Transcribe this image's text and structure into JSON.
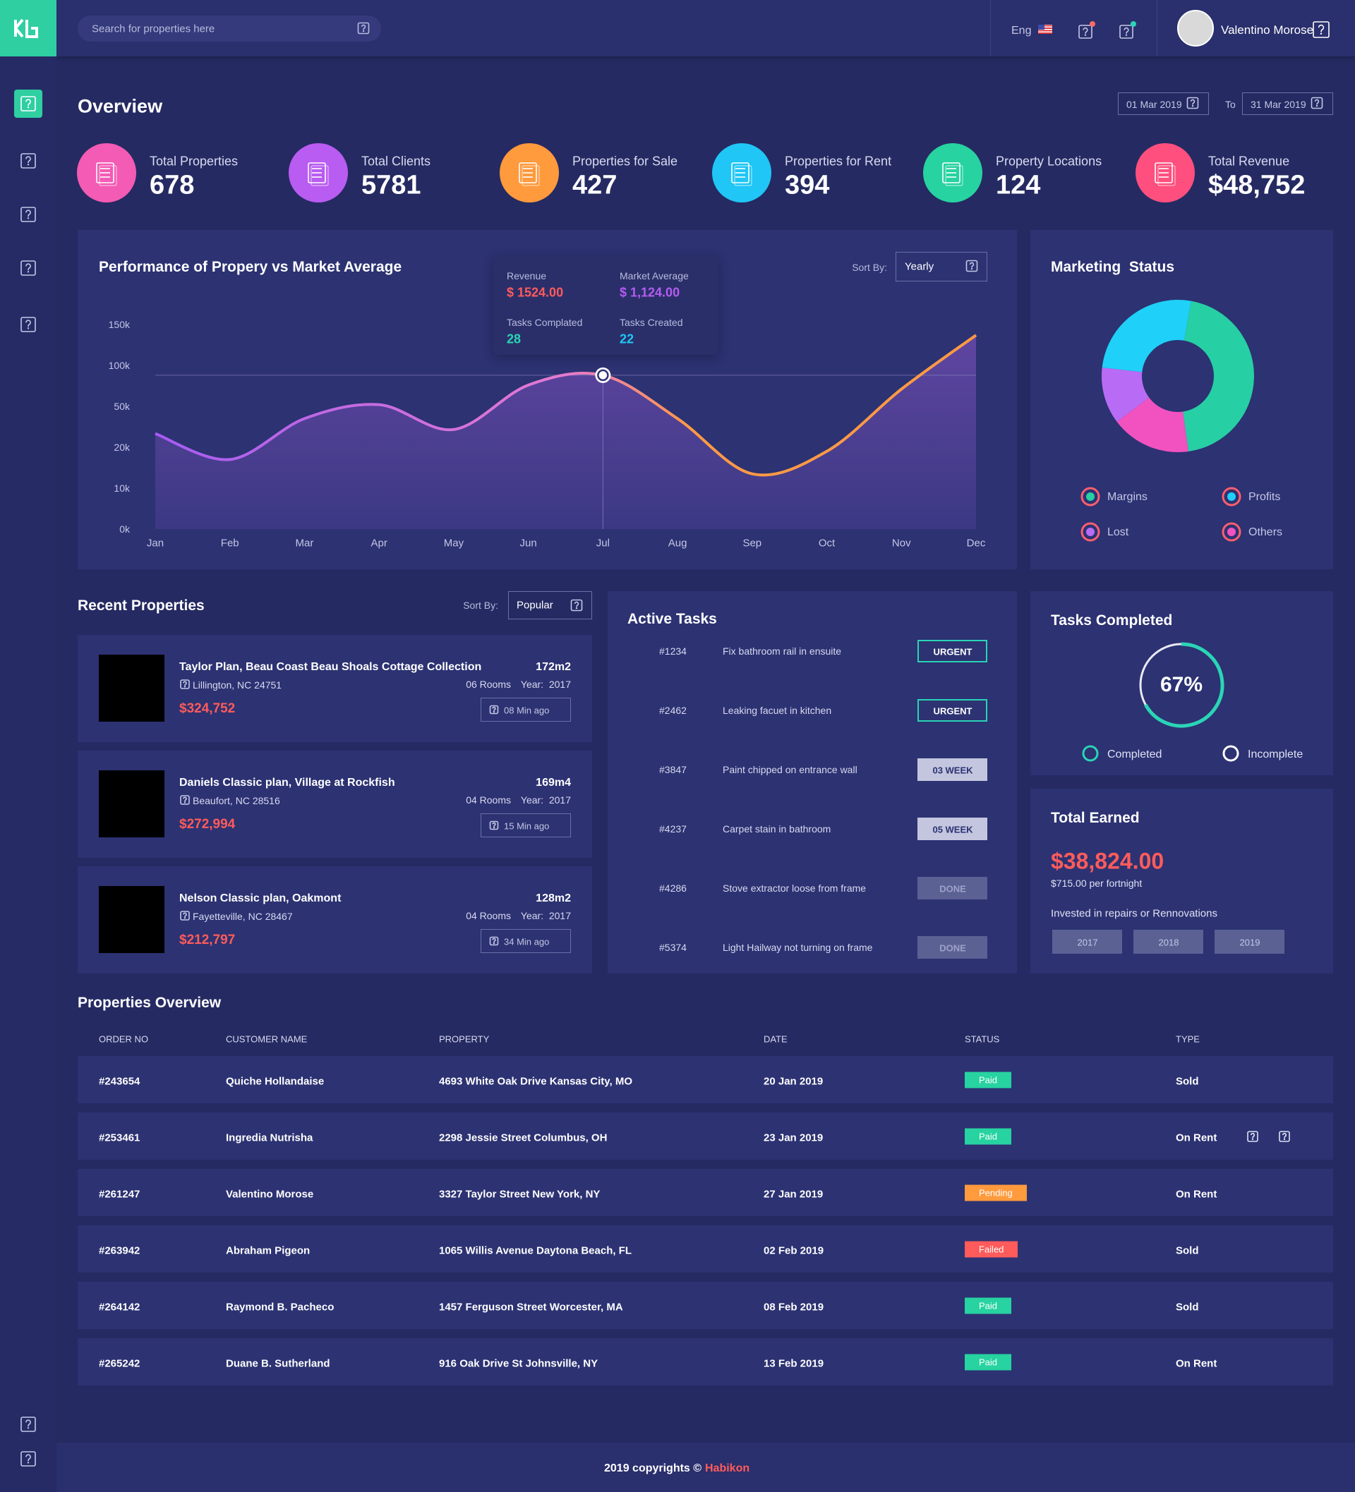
{
  "header": {
    "search_placeholder": "Search for properties here",
    "language": "Eng",
    "user_name": "Valentino Morose"
  },
  "overview": {
    "title": "Overview",
    "date_from": "01 Mar 2019",
    "date_to_label": "To",
    "date_to": "31 Mar 2019",
    "stats": [
      {
        "label": "Total Properties",
        "value": "678",
        "color": "#f35bb4"
      },
      {
        "label": "Total Clients",
        "value": "5781",
        "color": "#b95cf2"
      },
      {
        "label": "Properties for Sale",
        "value": "427",
        "color": "#ff9a3d"
      },
      {
        "label": "Properties for Rent",
        "value": "394",
        "color": "#1fc6f6"
      },
      {
        "label": "Property Locations",
        "value": "124",
        "color": "#27d3a0"
      },
      {
        "label": "Total Revenue",
        "value": "$48,752",
        "color": "#ff4f7e"
      }
    ]
  },
  "performance_chart": {
    "type": "line",
    "title": "Performance of Propery vs Market Average",
    "sort_label": "Sort By:",
    "sort_value": "Yearly",
    "categories": [
      "Jan",
      "Feb",
      "Mar",
      "Apr",
      "May",
      "Jun",
      "Jul",
      "Aug",
      "Sep",
      "Oct",
      "Nov",
      "Dec"
    ],
    "values": [
      30000,
      17000,
      41000,
      52000,
      33000,
      76000,
      88000,
      41000,
      13500,
      19000,
      71000,
      137000
    ],
    "ylim": [
      0,
      150000
    ],
    "yticks": [
      {
        "value": 0,
        "label": "0k"
      },
      {
        "value": 10000,
        "label": "10k"
      },
      {
        "value": 20000,
        "label": "20k"
      },
      {
        "value": 50000,
        "label": "50k"
      },
      {
        "value": 100000,
        "label": "100k"
      },
      {
        "value": 150000,
        "label": "150k"
      }
    ],
    "marker_index": 6,
    "tooltip": [
      {
        "label": "Revenue",
        "value": "$ 1524.00",
        "color": "#ff5b5b"
      },
      {
        "label": "Market Average",
        "value": "$ 1,124.00",
        "color": "#b45cf2"
      },
      {
        "label": "Tasks Complated",
        "value": "28",
        "color": "#2bd4b5"
      },
      {
        "label": "Tasks Created",
        "value": "22",
        "color": "#1fc6f6"
      }
    ]
  },
  "marketing_status": {
    "type": "donut",
    "title": "Marketing  Status",
    "segments": [
      {
        "name": "Margins",
        "value": 45,
        "color": "#27cfa4"
      },
      {
        "name": "Others",
        "value": 17,
        "color": "#f152c0"
      },
      {
        "name": "Lost",
        "value": 12,
        "color": "#b86cf5"
      },
      {
        "name": "Profits",
        "value": 26,
        "color": "#1fd0f8"
      }
    ]
  },
  "recent_properties": {
    "title": "Recent Properties",
    "sort_label": "Sort By:",
    "sort_value": "Popular",
    "items": [
      {
        "title": "Taylor Plan, Beau Coast Beau Shoals Cottage Collection",
        "location": "Lillington, NC 24751",
        "area": "172m2",
        "rooms": "06 Rooms",
        "year": "Year:  2017",
        "price": "$324,752",
        "time": "08 Min ago"
      },
      {
        "title": "Daniels Classic plan, Village at Rockfish",
        "location": "Beaufort, NC 28516",
        "area": "169m4",
        "rooms": "04 Rooms",
        "year": "Year:  2017",
        "price": "$272,994",
        "time": "15 Min ago"
      },
      {
        "title": "Nelson Classic plan, Oakmont",
        "location": "Fayetteville, NC 28467",
        "area": "128m2",
        "rooms": "04 Rooms",
        "year": "Year:  2017",
        "price": "$212,797",
        "time": "34 Min ago"
      }
    ]
  },
  "active_tasks": {
    "title": "Active Tasks",
    "tasks": [
      {
        "id": "#1234",
        "description": "Fix bathroom rail in ensuite",
        "status": "URGENT",
        "style": "urgent"
      },
      {
        "id": "#2462",
        "description": "Leaking facuet in kitchen",
        "status": "URGENT",
        "style": "urgent"
      },
      {
        "id": "#3847",
        "description": "Paint chipped on entrance wall",
        "status": "03 WEEK",
        "style": "week"
      },
      {
        "id": "#4237",
        "description": "Carpet stain in bathroom",
        "status": "05 WEEK",
        "style": "week"
      },
      {
        "id": "#4286",
        "description": "Stove extractor loose from frame",
        "status": "DONE",
        "style": "done"
      },
      {
        "id": "#5374",
        "description": "Light Hailway not turning on frame",
        "status": "DONE",
        "style": "done"
      }
    ]
  },
  "tasks_completed": {
    "title": "Tasks Completed",
    "value": 67,
    "value_label": "67%",
    "legend": [
      "Completed",
      "Incomplete"
    ]
  },
  "total_earned": {
    "title": "Total Earned",
    "amount": "$38,824.00",
    "rate": "$715.00 per fortnight",
    "note": "Invested in repairs or Rennovations",
    "years": [
      "2017",
      "2018",
      "2019"
    ]
  },
  "properties_overview": {
    "title": "Properties Overview",
    "columns": [
      "ORDER NO",
      "CUSTOMER NAME",
      "PROPERTY",
      "DATE",
      "STATUS",
      "TYPE"
    ],
    "rows": [
      [
        "#243654",
        "Quiche Hollandaise",
        "4693 White Oak Drive Kansas City, MO",
        "20 Jan 2019",
        "Paid",
        "Sold"
      ],
      [
        "#253461",
        "Ingredia Nutrisha",
        "2298 Jessie Street Columbus, OH",
        "23 Jan 2019",
        "Paid",
        "On Rent"
      ],
      [
        "#261247",
        "Valentino Morose",
        "3327 Taylor Street New York, NY",
        "27 Jan 2019",
        "Pending",
        "On Rent"
      ],
      [
        "#263942",
        "Abraham Pigeon",
        "1065 Willis Avenue Daytona Beach, FL",
        "02 Feb 2019",
        "Failed",
        "Sold"
      ],
      [
        "#264142",
        "Raymond B. Pacheco",
        "1457 Ferguson Street Worcester, MA",
        "08 Feb 2019",
        "Paid",
        "Sold"
      ],
      [
        "#265242",
        "Duane B. Sutherland",
        "916 Oak Drive St Johnsville, NY",
        "13 Feb 2019",
        "Paid",
        "On Rent"
      ]
    ],
    "status_colors": {
      "Paid": "#27d3a0",
      "Pending": "#ff9a3d",
      "Failed": "#ff5b5b"
    }
  },
  "footer": {
    "text": "2019 copyrights ©",
    "brand": "Habikon"
  }
}
